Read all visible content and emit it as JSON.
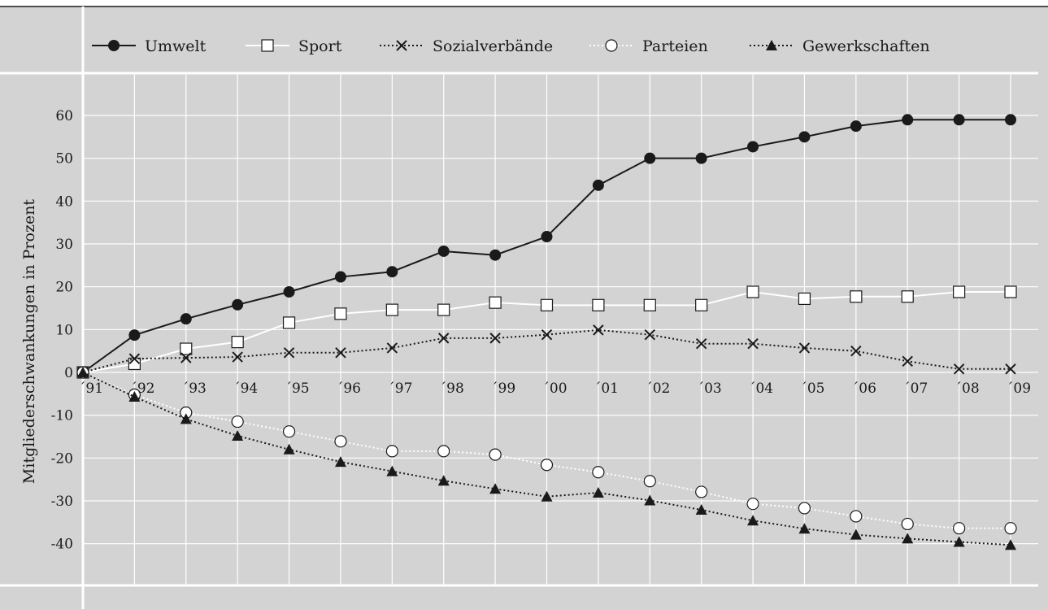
{
  "chart_data": {
    "type": "line",
    "ylabel": "Mitgliederschwankungen in Prozent",
    "xlabel": "",
    "ylim": [
      -50,
      70
    ],
    "y_ticks": [
      60,
      50,
      40,
      30,
      20,
      10,
      0,
      -10,
      -20,
      -30,
      -40
    ],
    "y_tick_labels": [
      "60",
      "50",
      "40",
      "30",
      "20",
      "10",
      "0",
      "-10",
      "-20",
      "-30",
      "-40"
    ],
    "categories": [
      "´91",
      "´92",
      "´93",
      "´94",
      "´95",
      "´96",
      "´97",
      "´98",
      "´99",
      "´00",
      "´01",
      "´02",
      "´03",
      "´04",
      "´05",
      "´06",
      "´07",
      "´08",
      "´09"
    ],
    "grid": true,
    "legend_position": "top",
    "background_color": "#d3d3d3",
    "grid_color": "#ffffff",
    "series": [
      {
        "name": "Umwelt",
        "marker": "filled-circle",
        "line": "solid",
        "line_color": "#1a1a1a",
        "values": [
          0,
          8.7,
          12.5,
          15.8,
          18.8,
          22.3,
          23.5,
          28.3,
          27.4,
          31.7,
          43.7,
          50,
          50,
          52.7,
          55.0,
          57.5,
          59.0,
          59.0,
          59.0
        ]
      },
      {
        "name": "Sport",
        "marker": "open-square",
        "line": "solid",
        "line_color": "#ffffff",
        "values": [
          0,
          2.0,
          5.5,
          7.1,
          11.6,
          13.7,
          14.6,
          14.6,
          16.3,
          15.7,
          15.7,
          15.7,
          15.7,
          18.8,
          17.2,
          17.7,
          17.7,
          18.8,
          18.8
        ]
      },
      {
        "name": "Sozialverbände",
        "marker": "cross",
        "line": "dotted",
        "line_color": "#1a1a1a",
        "values": [
          0,
          3.2,
          3.4,
          3.6,
          4.6,
          4.6,
          5.7,
          8.0,
          8.0,
          8.8,
          9.9,
          8.8,
          6.7,
          6.7,
          5.7,
          5.0,
          2.6,
          0.8,
          0.8
        ]
      },
      {
        "name": "Parteien",
        "marker": "open-circle",
        "line": "dotted",
        "line_color": "#ffffff",
        "values": [
          0,
          -5.2,
          -9.4,
          -11.5,
          -13.8,
          -16.1,
          -18.4,
          -18.4,
          -19.2,
          -21.6,
          -23.3,
          -25.4,
          -27.9,
          -30.7,
          -31.7,
          -33.6,
          -35.4,
          -36.4,
          -36.4
        ]
      },
      {
        "name": "Gewerkschaften",
        "marker": "filled-triangle",
        "line": "dotted",
        "line_color": "#1a1a1a",
        "values": [
          0,
          -5.7,
          -10.9,
          -14.8,
          -18.0,
          -20.9,
          -23.1,
          -25.3,
          -27.2,
          -29.0,
          -28.1,
          -29.9,
          -32.1,
          -34.6,
          -36.5,
          -37.9,
          -38.8,
          -39.6,
          -40.3
        ]
      }
    ]
  }
}
